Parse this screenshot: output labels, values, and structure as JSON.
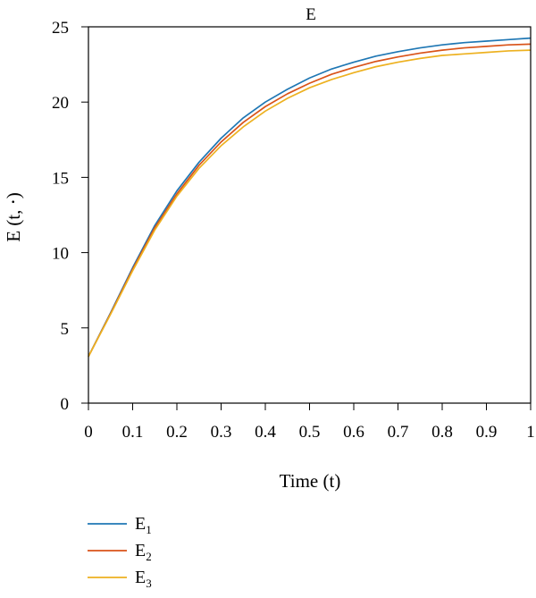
{
  "chart_data": {
    "type": "line",
    "title": "E",
    "xlabel": "Time (t)",
    "ylabel": "E (t, ⋅)",
    "xlim": [
      0,
      1
    ],
    "ylim": [
      0,
      25
    ],
    "grid": false,
    "legend_position": "bottom-left",
    "x_ticks": [
      "0",
      "0.1",
      "0.2",
      "0.3",
      "0.4",
      "0.5",
      "0.6",
      "0.7",
      "0.8",
      "0.9",
      "1"
    ],
    "y_ticks": [
      "0",
      "5",
      "10",
      "15",
      "20",
      "25"
    ],
    "x": [
      0,
      0.05,
      0.1,
      0.15,
      0.2,
      0.25,
      0.3,
      0.35,
      0.4,
      0.45,
      0.5,
      0.55,
      0.6,
      0.65,
      0.7,
      0.75,
      0.8,
      0.85,
      0.9,
      0.95,
      1.0
    ],
    "series": [
      {
        "name": "E1",
        "base": "E",
        "sub": "1",
        "color": "#1f77b4",
        "values": [
          3.1,
          6.0,
          9.0,
          11.8,
          14.1,
          16.0,
          17.6,
          18.95,
          20.0,
          20.85,
          21.6,
          22.2,
          22.65,
          23.05,
          23.35,
          23.6,
          23.8,
          23.95,
          24.05,
          24.15,
          24.25
        ]
      },
      {
        "name": "E2",
        "base": "E",
        "sub": "2",
        "color": "#d95319",
        "values": [
          3.1,
          5.95,
          8.9,
          11.65,
          13.9,
          15.8,
          17.35,
          18.65,
          19.7,
          20.55,
          21.25,
          21.85,
          22.3,
          22.7,
          23.0,
          23.25,
          23.45,
          23.6,
          23.7,
          23.8,
          23.85
        ]
      },
      {
        "name": "E3",
        "base": "E",
        "sub": "3",
        "color": "#edb120",
        "values": [
          3.1,
          5.9,
          8.8,
          11.5,
          13.75,
          15.6,
          17.1,
          18.35,
          19.4,
          20.25,
          20.95,
          21.5,
          21.95,
          22.35,
          22.65,
          22.9,
          23.1,
          23.2,
          23.3,
          23.4,
          23.45
        ]
      }
    ]
  }
}
